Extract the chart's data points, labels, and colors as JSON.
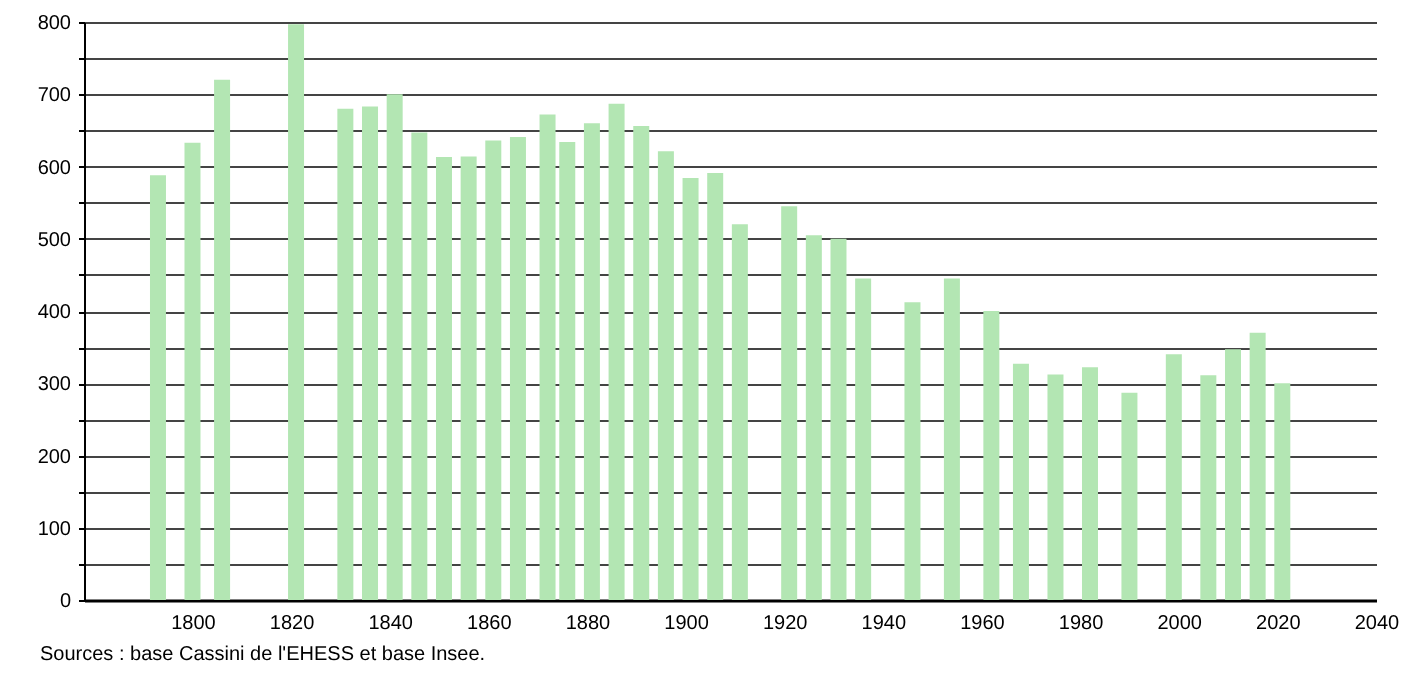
{
  "chart_data": {
    "type": "bar",
    "x": [
      1793,
      1800,
      1806,
      1821,
      1831,
      1836,
      1841,
      1846,
      1851,
      1856,
      1861,
      1866,
      1872,
      1876,
      1881,
      1886,
      1891,
      1896,
      1901,
      1906,
      1911,
      1921,
      1926,
      1931,
      1936,
      1946,
      1954,
      1962,
      1968,
      1975,
      1982,
      1990,
      1999,
      2006,
      2011,
      2016,
      2021
    ],
    "values": [
      588,
      633,
      720,
      797,
      680,
      683,
      700,
      647,
      613,
      614,
      636,
      641,
      672,
      634,
      660,
      687,
      656,
      621,
      584,
      591,
      520,
      545,
      505,
      500,
      445,
      412,
      445,
      400,
      327,
      312,
      322,
      287,
      340,
      311,
      347,
      370,
      300
    ],
    "color": "#b3e6b3",
    "xlim": [
      1778,
      2040
    ],
    "xticks": [
      1800,
      1820,
      1840,
      1860,
      1880,
      1900,
      1920,
      1940,
      1960,
      1980,
      2000,
      2020,
      2040
    ],
    "ylim": [
      0,
      800
    ],
    "yticks": [
      0,
      {
        "value": 50,
        "label": null
      },
      100,
      {
        "value": 150,
        "label": null
      },
      200,
      {
        "value": 250,
        "label": null
      },
      300,
      {
        "value": 350,
        "label": null
      },
      400,
      {
        "value": 450,
        "label": null
      },
      500,
      {
        "value": 550,
        "label": null
      },
      600,
      {
        "value": 650,
        "label": null
      },
      700,
      {
        "value": 750,
        "label": null
      },
      800
    ],
    "grid": "y",
    "annotations": [
      "Sources : base Cassini de l'EHESS et base Insee."
    ]
  }
}
